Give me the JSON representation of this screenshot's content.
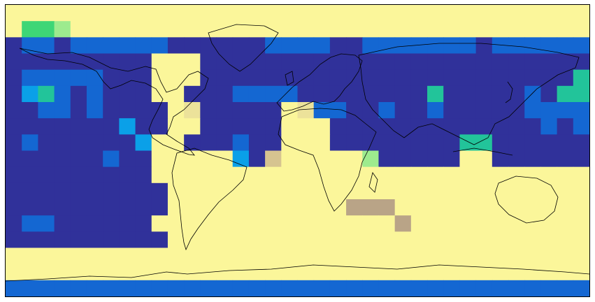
{
  "map": {
    "projection": "equirectangular",
    "extent": {
      "lon": [
        -180,
        180
      ],
      "lat": [
        -90,
        90
      ]
    },
    "grid": {
      "cols": 36,
      "rows": 18
    },
    "colormap": [
      {
        "level": 0,
        "color": "#30319a"
      },
      {
        "level": 1,
        "color": "#1467d2"
      },
      {
        "level": 2,
        "color": "#0aa0e8"
      },
      {
        "level": 3,
        "color": "#22c49a"
      },
      {
        "level": 4,
        "color": "#3ed676"
      },
      {
        "level": 5,
        "color": "#9deb8e"
      },
      {
        "level": 6,
        "color": "#fbf69a"
      },
      {
        "level": 7,
        "color": "#ece29a"
      },
      {
        "level": 8,
        "color": "#d6c490"
      },
      {
        "level": 9,
        "color": "#b9a487"
      },
      {
        "level": 10,
        "color": "#a08878"
      },
      {
        "level": 11,
        "color": "#fcfcfc"
      }
    ],
    "cells": [
      "666666666666666666666666666666666666",
      "644566666666666666666666666666666666",
      "011011111100000011110011111110111111",
      "000000000666000000000000000000000000",
      "011111000666000000000000000000000003",
      "023101000660001111000000003000001033",
      "001101000067000006711001001000001111",
      "000000020066000006660000000000000101",
      "010000002660001006660000000033000000",
      "000000100666662086666650000066000000",
      "000000000666666666666666666666666666",
      "000000000066666666666666666666666666",
      "000000000066666666666999666666666666",
      "011000000666666666666666966666666666",
      "000000000066666666666666666666666666",
      "666666666666666666666666666666666666",
      "666666666666666666666666666666666666",
      "111111111111111111111111111111111111"
    ]
  }
}
